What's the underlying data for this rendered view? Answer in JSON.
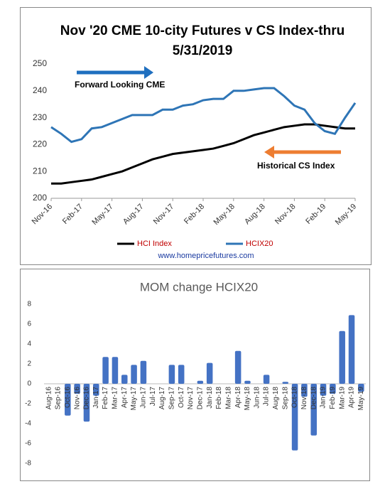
{
  "chart_data": [
    {
      "type": "line",
      "title": "Nov '20 CME 10-city Futures v CS Index-thru 5/31/2019",
      "categories": [
        "Nov-16",
        null,
        null,
        "Feb-17",
        null,
        null,
        "May-17",
        null,
        null,
        "Aug-17",
        null,
        null,
        "Nov-17",
        null,
        null,
        "Feb-18",
        null,
        null,
        "May-18",
        null,
        null,
        "Aug-18",
        null,
        null,
        "Nov-18",
        null,
        null,
        "Feb-19",
        null,
        null,
        "May-19"
      ],
      "series": [
        {
          "name": "HCI Index",
          "color": "#000000",
          "values": [
            205.5,
            205.5,
            206,
            206.5,
            207,
            208,
            209,
            210,
            211.5,
            213,
            214.5,
            215.5,
            216.5,
            217,
            217.5,
            218,
            218.5,
            219.5,
            220.5,
            222,
            223.5,
            224.5,
            225.5,
            226.5,
            227,
            227.5,
            227.5,
            227,
            226.5,
            226,
            226
          ]
        },
        {
          "name": "HCIX20",
          "color": "#2e75b6",
          "values": [
            226.5,
            224,
            221,
            222,
            226,
            226.5,
            228,
            229.5,
            231,
            231,
            231,
            233,
            233,
            234.5,
            235,
            236.5,
            237,
            237,
            240,
            240,
            240.5,
            241,
            241,
            238,
            234.5,
            233,
            228,
            225,
            224,
            230,
            235.5
          ]
        }
      ],
      "ylim": [
        200,
        250
      ],
      "yticks": [
        200,
        210,
        220,
        230,
        240,
        250
      ],
      "grid": false,
      "annotations": [
        "Forward Looking CME",
        "Historical CS Index"
      ],
      "source": "www.homepricefutures.com"
    },
    {
      "type": "bar",
      "title": "MOM change HCIX20",
      "categories": [
        "Aug-16",
        "Sep-16",
        "Oct-16",
        "Nov-16",
        "Dec-16",
        "Jan-17",
        "Feb-17",
        "Mar-17",
        "Apr-17",
        "May-17",
        "Jun-17",
        "Jul-17",
        "Aug-17",
        "Sep-17",
        "Oct-17",
        "Nov-17",
        "Dec-17",
        "Jan-18",
        "Feb-18",
        "Mar-18",
        "Apr-18",
        "May-18",
        "Jun-18",
        "Jul-18",
        "Aug-18",
        "Sep-18",
        "Oct-18",
        "Nov-18",
        "Dec-18",
        "Jan-19",
        "Feb-19",
        "Mar-19",
        "Apr-19",
        "May-19"
      ],
      "values": [
        0,
        0,
        -3.2,
        -1.0,
        -3.8,
        -1.2,
        2.7,
        2.7,
        0.9,
        1.9,
        2.3,
        0,
        0,
        1.9,
        1.9,
        0,
        0.3,
        2.1,
        0,
        0,
        3.3,
        0.3,
        0,
        0.9,
        0,
        0.2,
        -6.7,
        -1.3,
        -5.2,
        -1.2,
        -1.0,
        5.3,
        6.9,
        -0.8
      ],
      "color": "#4472c4",
      "ylim": [
        -8,
        8
      ],
      "yticks": [
        -8,
        -6,
        -4,
        -2,
        0,
        2,
        4,
        6,
        8
      ],
      "grid": false
    }
  ]
}
